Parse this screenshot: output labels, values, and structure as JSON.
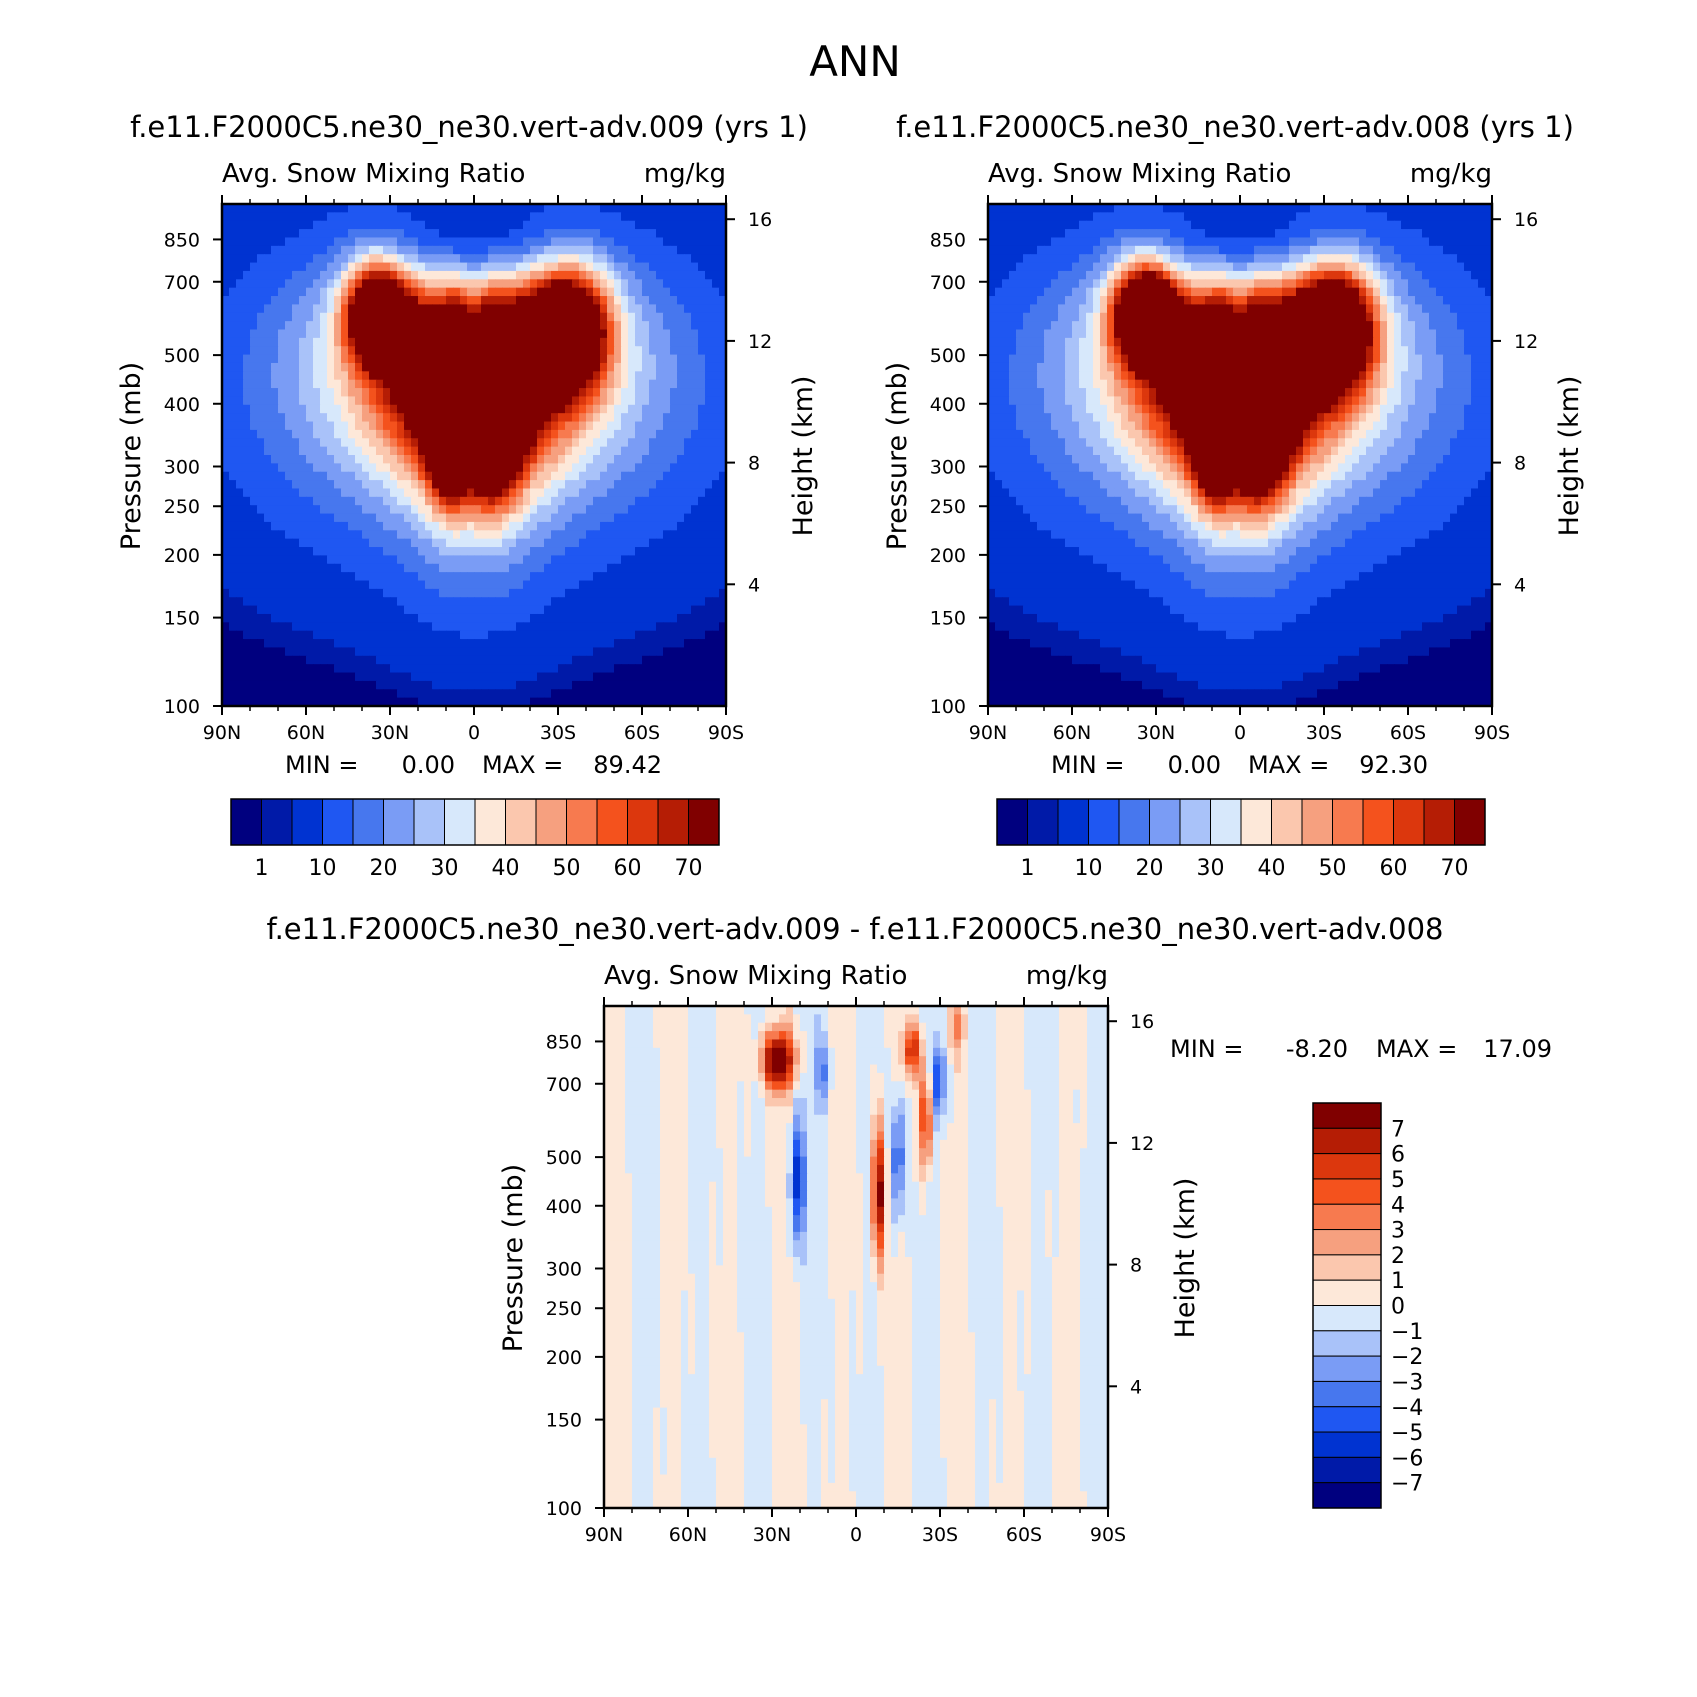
{
  "figure_title": "ANN",
  "chart_data": [
    {
      "type": "heatmap",
      "case_label": "f.e11.F2000C5.ne30_ne30.vert-adv.009 (yrs 1)",
      "variable": "Avg. Snow Mixing Ratio",
      "units": "mg/kg",
      "ylabel_left": "Pressure (mb)",
      "ylabel_right": "Height (km)",
      "x_ticks": [
        "90N",
        "60N",
        "30N",
        "0",
        "30S",
        "60S",
        "90S"
      ],
      "y_ticks_pressure": [
        100,
        150,
        200,
        250,
        300,
        400,
        500,
        700,
        850
      ],
      "y_ticks_height": [
        16,
        12,
        8,
        4
      ],
      "min_label": "MIN =",
      "min_value": "0.00",
      "max_label": "MAX =",
      "max_value": "89.42",
      "colorbar_labels": [
        "1",
        "10",
        "20",
        "30",
        "40",
        "50",
        "60",
        "70"
      ],
      "colors": [
        "#00007f",
        "#001aa8",
        "#0033d1",
        "#1f57f2",
        "#4777ee",
        "#7a9cf5",
        "#a9c2f9",
        "#d7e8fb",
        "#fde8d9",
        "#fbc7ae",
        "#f6a07f",
        "#f77a4f",
        "#f4521d",
        "#dc370d",
        "#b51d05",
        "#800000"
      ]
    },
    {
      "type": "heatmap",
      "case_label": "f.e11.F2000C5.ne30_ne30.vert-adv.008 (yrs 1)",
      "variable": "Avg. Snow Mixing Ratio",
      "units": "mg/kg",
      "ylabel_left": "Pressure (mb)",
      "ylabel_right": "Height (km)",
      "x_ticks": [
        "90N",
        "60N",
        "30N",
        "0",
        "30S",
        "60S",
        "90S"
      ],
      "y_ticks_pressure": [
        100,
        150,
        200,
        250,
        300,
        400,
        500,
        700,
        850
      ],
      "y_ticks_height": [
        16,
        12,
        8,
        4
      ],
      "min_label": "MIN =",
      "min_value": "0.00",
      "max_label": "MAX =",
      "max_value": "92.30",
      "colorbar_labels": [
        "1",
        "10",
        "20",
        "30",
        "40",
        "50",
        "60",
        "70"
      ],
      "colors": [
        "#00007f",
        "#001aa8",
        "#0033d1",
        "#1f57f2",
        "#4777ee",
        "#7a9cf5",
        "#a9c2f9",
        "#d7e8fb",
        "#fde8d9",
        "#fbc7ae",
        "#f6a07f",
        "#f77a4f",
        "#f4521d",
        "#dc370d",
        "#b51d05",
        "#800000"
      ]
    },
    {
      "type": "heatmap",
      "case_label": "f.e11.F2000C5.ne30_ne30.vert-adv.009 - f.e11.F2000C5.ne30_ne30.vert-adv.008",
      "variable": "Avg. Snow Mixing Ratio",
      "units": "mg/kg",
      "ylabel_left": "Pressure (mb)",
      "ylabel_right": "Height (km)",
      "x_ticks": [
        "90N",
        "60N",
        "30N",
        "0",
        "30S",
        "60S",
        "90S"
      ],
      "y_ticks_pressure": [
        100,
        150,
        200,
        250,
        300,
        400,
        500,
        700,
        850
      ],
      "y_ticks_height": [
        16,
        12,
        8,
        4
      ],
      "min_label": "MIN =",
      "min_value": "-8.20",
      "max_label": "MAX =",
      "max_value": "17.09",
      "colorbar_labels": [
        "7",
        "6",
        "5",
        "4",
        "3",
        "2",
        "1",
        "0",
        "-1",
        "-2",
        "-3",
        "-4",
        "-5",
        "-6",
        "-7"
      ],
      "colors": [
        "#800000",
        "#b51d05",
        "#dc370d",
        "#f4521d",
        "#f77a4f",
        "#f6a07f",
        "#fbc7ae",
        "#fde8d9",
        "#d7e8fb",
        "#a9c2f9",
        "#7a9cf5",
        "#4777ee",
        "#1f57f2",
        "#0033d1",
        "#001aa8",
        "#00007f"
      ]
    }
  ]
}
